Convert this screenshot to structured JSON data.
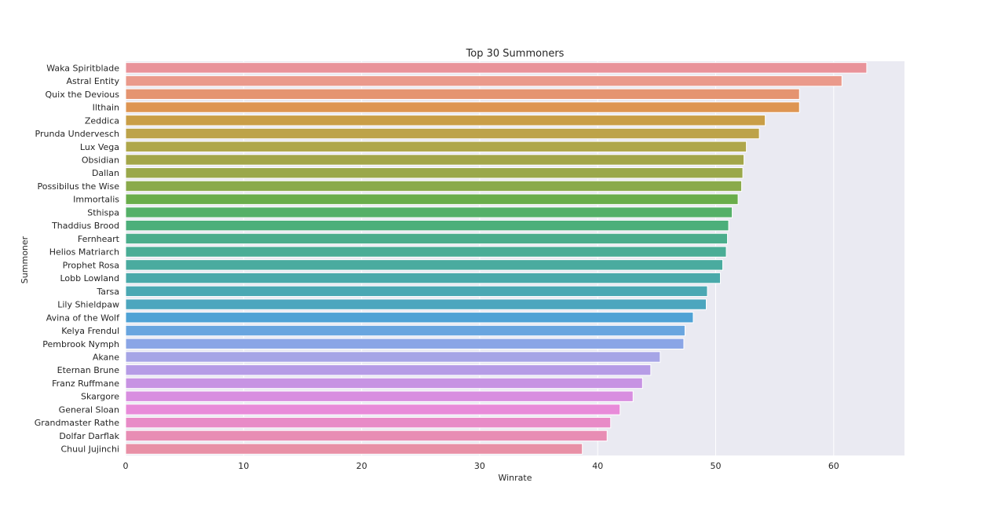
{
  "chart_data": {
    "type": "bar",
    "orientation": "horizontal",
    "title": "Top 30 Summoners",
    "xlabel": "Winrate",
    "ylabel": "Summoner",
    "xlim": [
      0,
      66
    ],
    "xticks": [
      0,
      10,
      20,
      30,
      40,
      50,
      60
    ],
    "grid": true,
    "categories": [
      "Waka Spiritblade",
      "Astral Entity",
      "Quix the Devious",
      "Ilthain",
      "Zeddica",
      "Prunda Undervesch",
      "Lux Vega",
      "Obsidian",
      "Dallan",
      "Possibilus the Wise",
      "Immortalis",
      "Sthispa",
      "Thaddius Brood",
      "Fernheart",
      "Helios Matriarch",
      "Prophet Rosa",
      "Lobb Lowland",
      "Tarsa",
      "Lily Shieldpaw",
      "Avina of the Wolf",
      "Kelya Frendul",
      "Pembrook Nymph",
      "Akane",
      "Eternan Brune",
      "Franz Ruffmane",
      "Skargore",
      "General Sloan",
      "Grandmaster Rathe",
      "Dolfar Darflak",
      "Chuul Jujinchi"
    ],
    "values": [
      62.8,
      60.7,
      57.1,
      57.1,
      54.2,
      53.7,
      52.6,
      52.4,
      52.3,
      52.2,
      51.9,
      51.4,
      51.1,
      51.0,
      50.9,
      50.6,
      50.4,
      49.3,
      49.2,
      48.1,
      47.4,
      47.3,
      45.3,
      44.5,
      43.8,
      43.0,
      41.9,
      41.1,
      40.8,
      38.7
    ],
    "colors": [
      "#e9939a",
      "#ea9a8b",
      "#e59470",
      "#de9552",
      "#c99e47",
      "#bda34a",
      "#afa74b",
      "#a3a64a",
      "#9aa84b",
      "#8aaa4b",
      "#6aad4b",
      "#55b068",
      "#4caf7a",
      "#4bad8c",
      "#4aad96",
      "#4aab9f",
      "#4aa9aa",
      "#4ba8b3",
      "#4ca6be",
      "#4fa2d5",
      "#69a5df",
      "#8aa5e6",
      "#a6a5e6",
      "#b69ce6",
      "#c793e3",
      "#d88ee0",
      "#e88bd9",
      "#e88bc7",
      "#e88db4",
      "#e890a6"
    ]
  }
}
